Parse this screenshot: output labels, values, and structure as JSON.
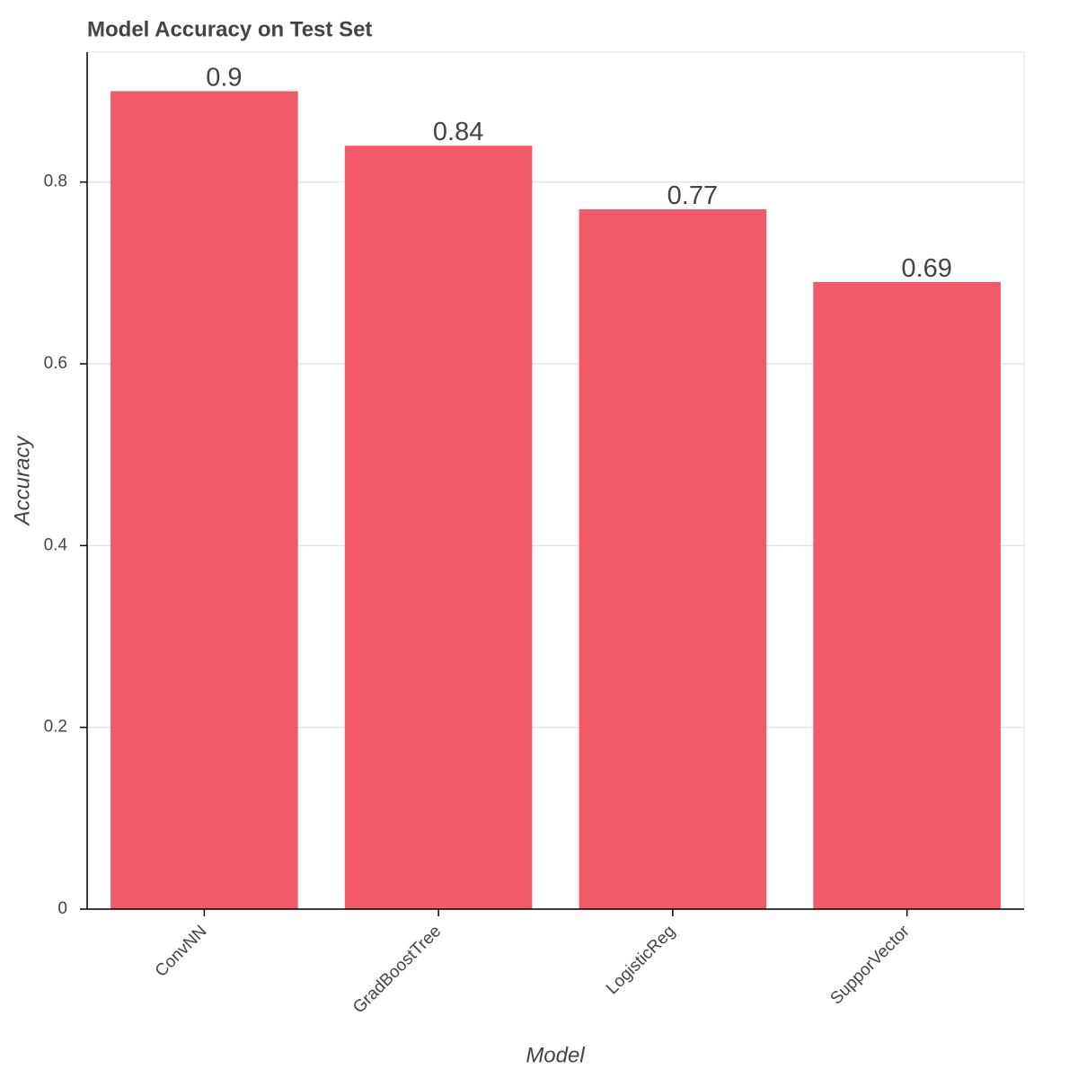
{
  "chart_data": {
    "type": "bar",
    "title": "Model Accuracy on Test Set",
    "x_label": "Model",
    "y_label": "Accuracy",
    "categories": [
      "ConvNN",
      "GradBoostTree",
      "LogisticReg",
      "SupporVector"
    ],
    "values": [
      0.9,
      0.84,
      0.77,
      0.69
    ],
    "color": "#f25a69",
    "ylim": [
      0,
      0.943
    ],
    "yticks": [
      0,
      0.2,
      0.4,
      0.6,
      0.8
    ],
    "grid": true
  }
}
